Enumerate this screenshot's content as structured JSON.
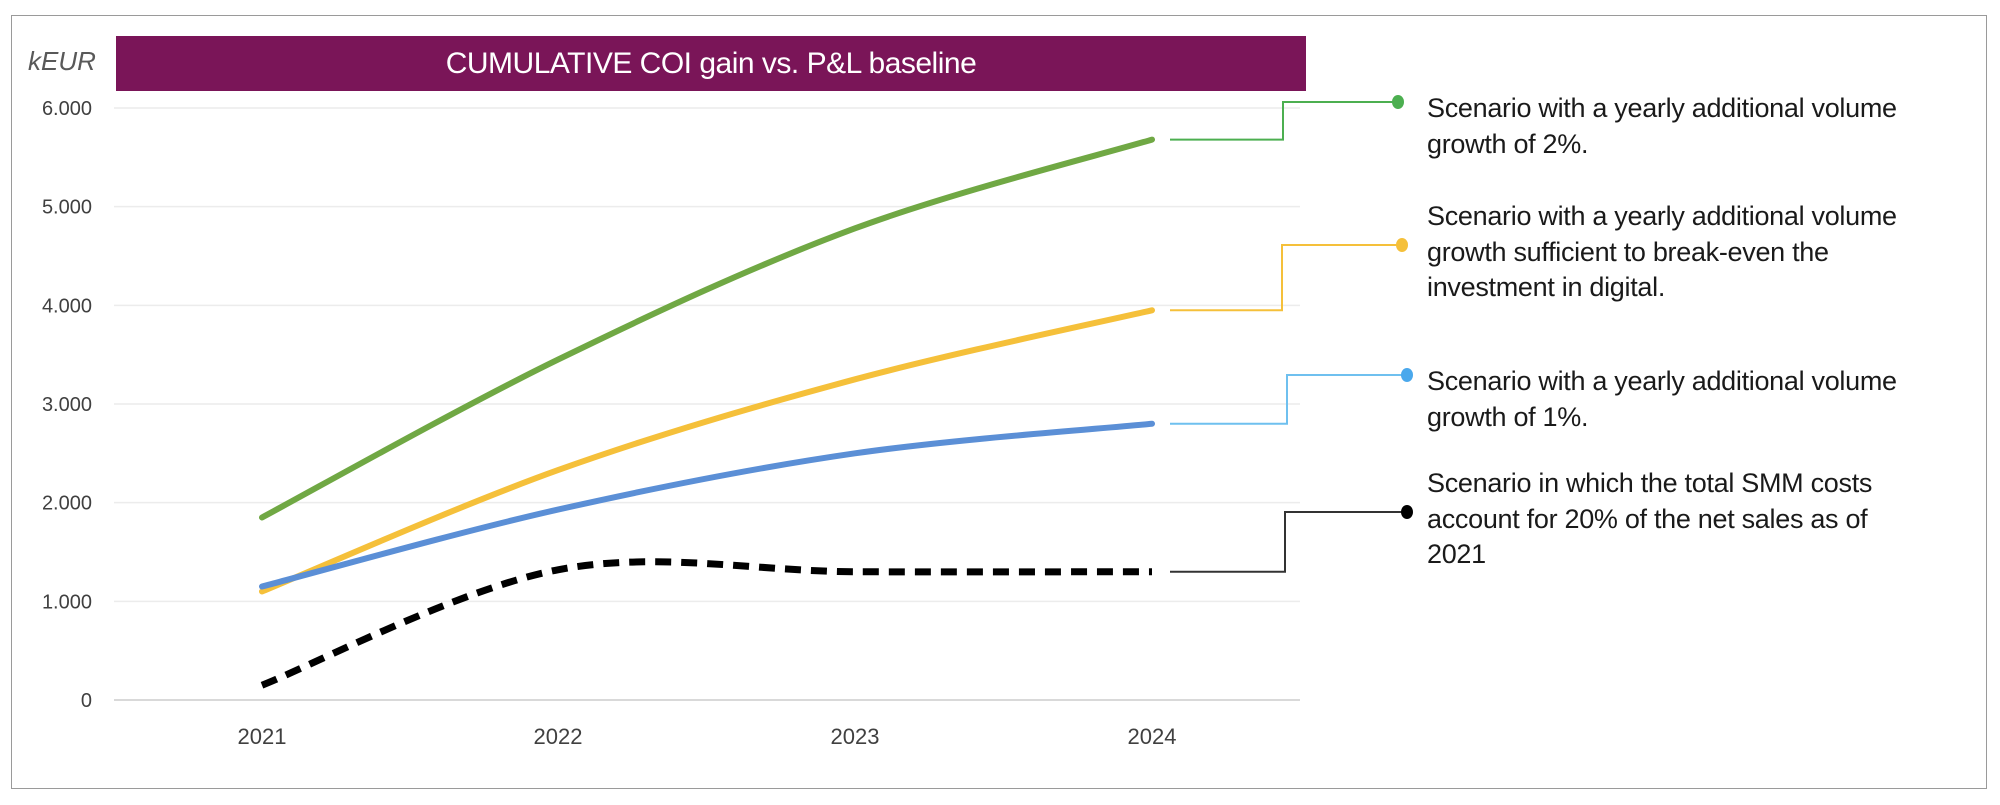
{
  "chart_data": {
    "type": "line",
    "title": "CUMULATIVE COI gain vs. P&L baseline",
    "ylabel": "kEUR",
    "xlabel": "",
    "categories": [
      "2021",
      "2022",
      "2023",
      "2024"
    ],
    "ylim": [
      0,
      6000
    ],
    "yticks": [
      0,
      1000,
      2000,
      3000,
      4000,
      5000,
      6000
    ],
    "ytick_labels": [
      "0",
      "1.000",
      "2.000",
      "3.000",
      "4.000",
      "5.000",
      "6.000"
    ],
    "grid": true,
    "smooth": true,
    "legend_placement": "right",
    "series": [
      {
        "key": "green",
        "values": [
          1850,
          3450,
          4780,
          5680
        ],
        "color": "#70a844",
        "dashed": false,
        "label": "Scenario with a yearly additional volume growth of 2%.",
        "label_lines": [
          "Scenario with a yearly additional volume",
          "growth of 2%."
        ],
        "marker_color": "#4caf50"
      },
      {
        "key": "yellow",
        "values": [
          1100,
          2330,
          3250,
          3950
        ],
        "color": "#f5c03a",
        "dashed": false,
        "label": "Scenario with a yearly additional volume growth sufficient to break-even the investment in digital.",
        "label_lines": [
          "Scenario with a yearly additional volume",
          "growth sufficient to break-even the",
          "investment in digital."
        ],
        "marker_color": "#f5c03a"
      },
      {
        "key": "blue",
        "values": [
          1150,
          1930,
          2500,
          2800
        ],
        "color": "#5b8fd6",
        "dashed": false,
        "label": "Scenario with a yearly additional volume growth of 1%.",
        "label_lines": [
          "Scenario with a yearly additional volume",
          "growth of 1%."
        ],
        "marker_color": "#4aa8ec"
      },
      {
        "key": "black",
        "values": [
          150,
          1320,
          1300,
          1300
        ],
        "color": "#000000",
        "dashed": true,
        "label": "Scenario in which the total SMM costs account for 20% of the net sales as of 2021",
        "label_lines": [
          "Scenario in which the total SMM costs",
          "account for 20% of the net sales as of",
          "2021"
        ],
        "marker_color": "#000000"
      }
    ]
  }
}
